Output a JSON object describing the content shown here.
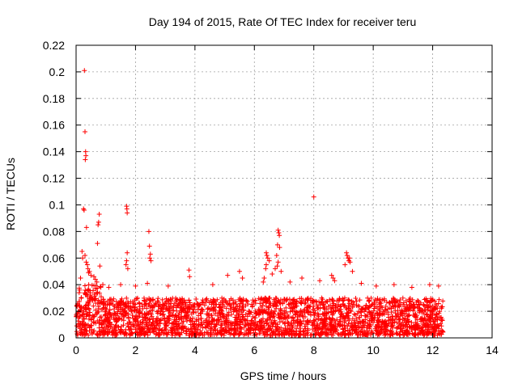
{
  "chart_data": {
    "type": "scatter",
    "title": "Day 194 of 2015, Rate Of TEC Index for receiver teru",
    "xlabel": "GPS time / hours",
    "ylabel": "ROTI / TECUs",
    "xlim": [
      0,
      14
    ],
    "ylim": [
      0,
      0.22
    ],
    "xticks": [
      0,
      2,
      4,
      6,
      8,
      10,
      12,
      14
    ],
    "xtick_labels": [
      "0",
      "2",
      "4",
      "6",
      "8",
      "10",
      "12",
      "14"
    ],
    "yticks": [
      0,
      0.02,
      0.04,
      0.06,
      0.08,
      0.1,
      0.12,
      0.14,
      0.16,
      0.18,
      0.2,
      0.22
    ],
    "ytick_labels": [
      "0",
      "0.02",
      "0.04",
      "0.06",
      "0.08",
      "0.1",
      "0.12",
      "0.14",
      "0.16",
      "0.18",
      "0.2",
      "0.22"
    ],
    "grid": true,
    "marker": "plus",
    "color": "#ff0000",
    "series": [
      {
        "name": "ROTI",
        "points": [
          [
            0.28,
            0.201
          ],
          [
            0.3,
            0.155
          ],
          [
            0.32,
            0.14
          ],
          [
            0.33,
            0.137
          ],
          [
            0.31,
            0.134
          ],
          [
            0.25,
            0.097
          ],
          [
            0.27,
            0.096
          ],
          [
            0.35,
            0.083
          ],
          [
            0.78,
            0.093
          ],
          [
            0.76,
            0.087
          ],
          [
            0.74,
            0.085
          ],
          [
            0.72,
            0.071
          ],
          [
            1.7,
            0.099
          ],
          [
            1.71,
            0.097
          ],
          [
            1.72,
            0.094
          ],
          [
            2.45,
            0.08
          ],
          [
            2.47,
            0.069
          ],
          [
            2.5,
            0.063
          ],
          [
            2.48,
            0.06
          ],
          [
            2.52,
            0.058
          ],
          [
            1.72,
            0.064
          ],
          [
            1.7,
            0.058
          ],
          [
            1.68,
            0.055
          ],
          [
            1.74,
            0.052
          ],
          [
            0.2,
            0.065
          ],
          [
            0.22,
            0.06
          ],
          [
            0.3,
            0.062
          ],
          [
            0.34,
            0.057
          ],
          [
            0.38,
            0.055
          ],
          [
            0.4,
            0.052
          ],
          [
            0.42,
            0.049
          ],
          [
            0.15,
            0.045
          ],
          [
            0.45,
            0.05
          ],
          [
            0.5,
            0.047
          ],
          [
            0.6,
            0.046
          ],
          [
            0.65,
            0.044
          ],
          [
            0.7,
            0.042
          ],
          [
            0.8,
            0.054
          ],
          [
            0.12,
            0.036
          ],
          [
            0.9,
            0.04
          ],
          [
            1.1,
            0.038
          ],
          [
            1.5,
            0.04
          ],
          [
            2.0,
            0.039
          ],
          [
            2.4,
            0.041
          ],
          [
            3.8,
            0.051
          ],
          [
            3.82,
            0.046
          ],
          [
            5.1,
            0.047
          ],
          [
            5.5,
            0.05
          ],
          [
            5.6,
            0.045
          ],
          [
            6.4,
            0.064
          ],
          [
            6.42,
            0.062
          ],
          [
            6.45,
            0.06
          ],
          [
            6.4,
            0.055
          ],
          [
            6.38,
            0.052
          ],
          [
            6.5,
            0.058
          ],
          [
            6.33,
            0.045
          ],
          [
            6.3,
            0.042
          ],
          [
            6.6,
            0.048
          ],
          [
            6.8,
            0.081
          ],
          [
            6.82,
            0.079
          ],
          [
            6.84,
            0.077
          ],
          [
            6.78,
            0.07
          ],
          [
            6.85,
            0.068
          ],
          [
            6.75,
            0.062
          ],
          [
            6.8,
            0.057
          ],
          [
            6.77,
            0.054
          ],
          [
            6.7,
            0.052
          ],
          [
            6.9,
            0.05
          ],
          [
            8.0,
            0.106
          ],
          [
            9.1,
            0.064
          ],
          [
            9.12,
            0.062
          ],
          [
            9.15,
            0.06
          ],
          [
            9.18,
            0.058
          ],
          [
            9.2,
            0.06
          ],
          [
            9.22,
            0.057
          ],
          [
            9.05,
            0.055
          ],
          [
            9.3,
            0.05
          ],
          [
            8.6,
            0.047
          ],
          [
            8.65,
            0.045
          ],
          [
            8.7,
            0.043
          ],
          [
            7.6,
            0.045
          ],
          [
            8.2,
            0.043
          ],
          [
            10.1,
            0.039
          ],
          [
            10.7,
            0.04
          ],
          [
            11.3,
            0.038
          ],
          [
            11.9,
            0.04
          ],
          [
            12.2,
            0.039
          ],
          [
            9.6,
            0.041
          ],
          [
            7.2,
            0.042
          ],
          [
            4.6,
            0.04
          ],
          [
            3.1,
            0.039
          ]
        ]
      }
    ],
    "dense_band": {
      "x_range": [
        0.0,
        12.35
      ],
      "typical_range": [
        0.002,
        0.03
      ],
      "note": "dense cloud of ROTI points between about 0.002 and 0.03 TECU/s"
    }
  }
}
